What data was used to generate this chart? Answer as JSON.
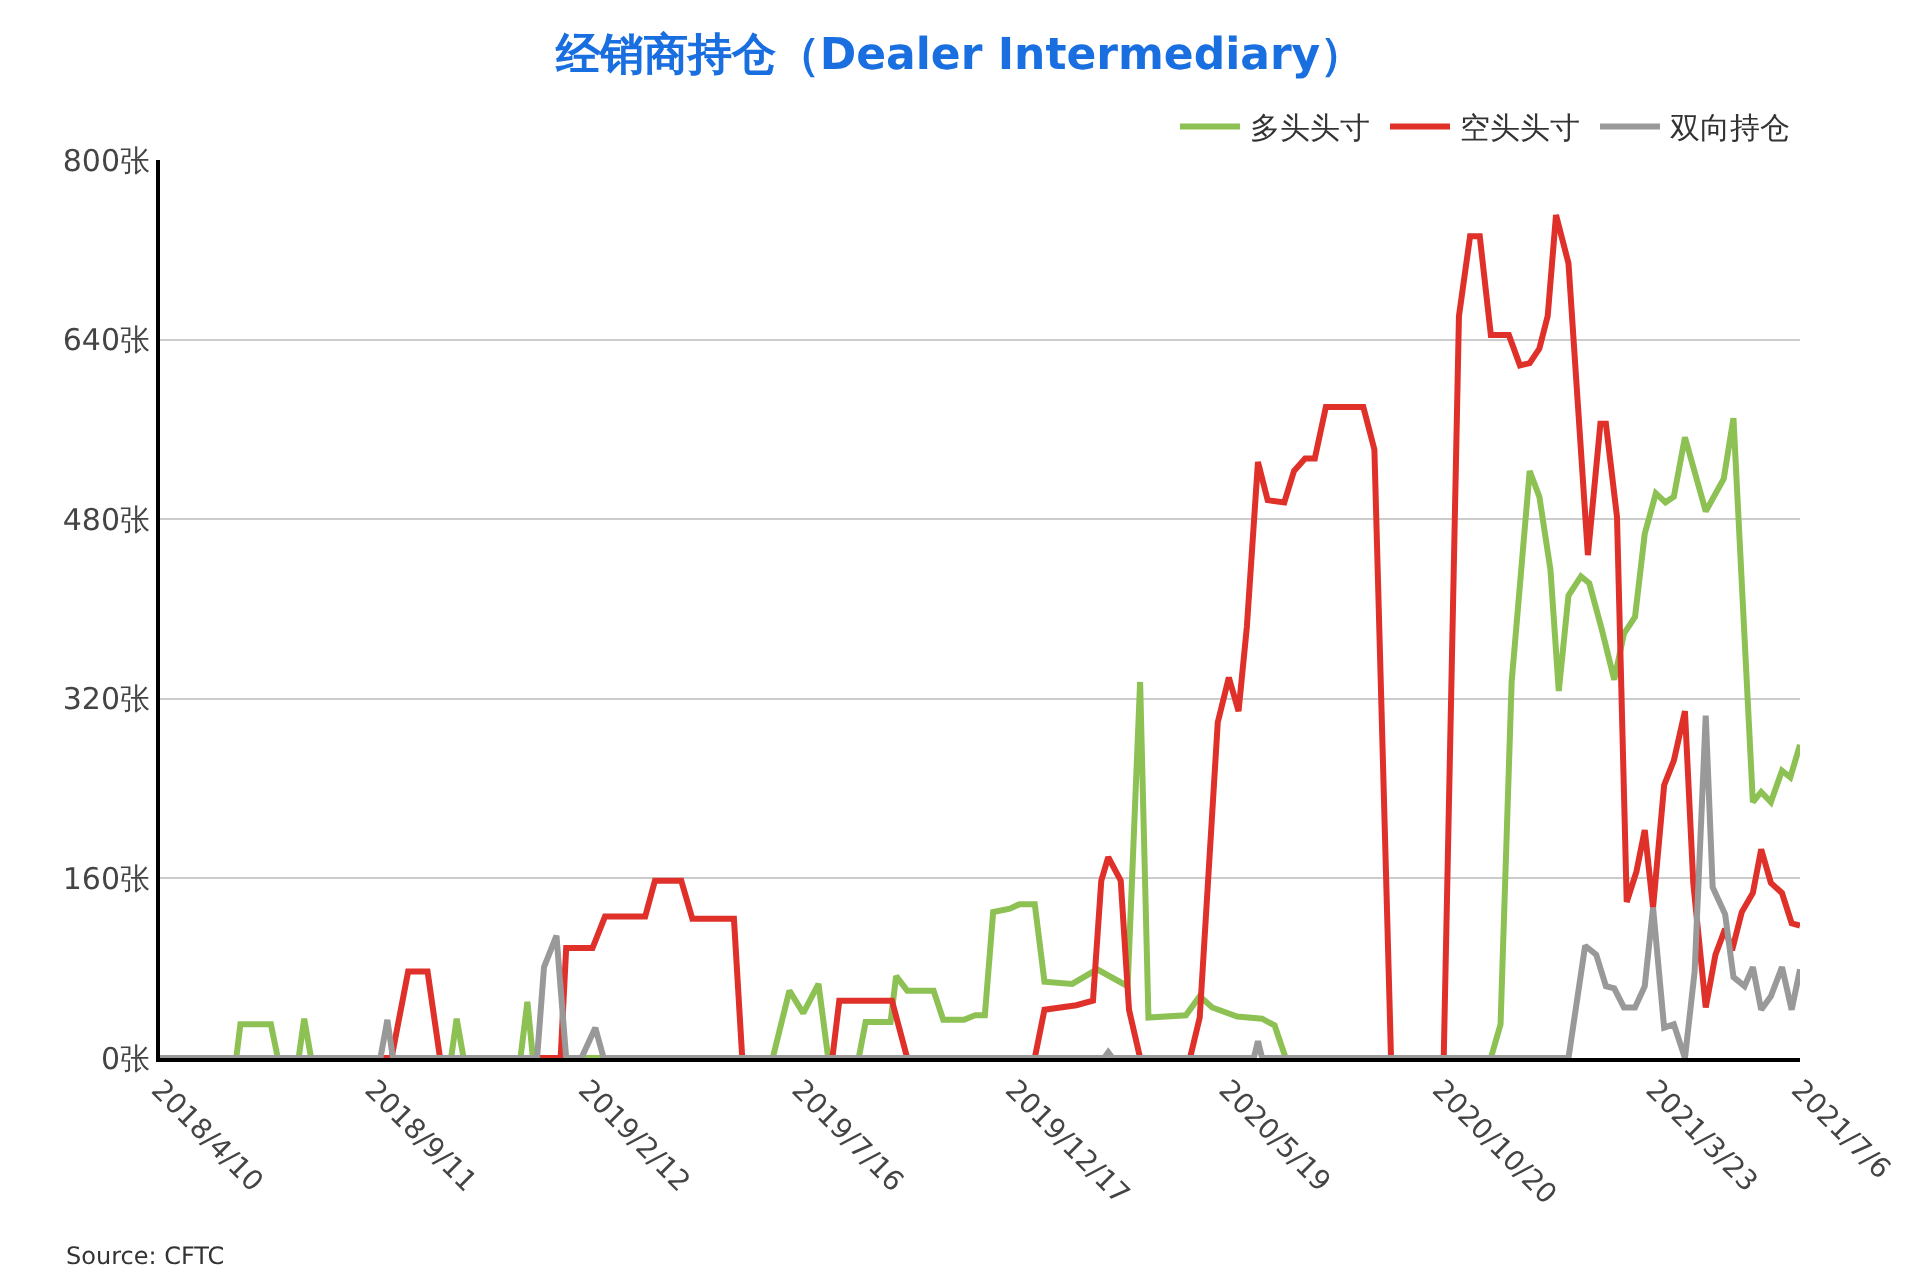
{
  "chart_data": {
    "type": "line",
    "title": "经销商持仓（Dealer Intermediary）",
    "annotations": [
      "Source: CFTC"
    ],
    "xlim": [
      "2018-04-10",
      "2021-07-06"
    ],
    "xticks": [
      {
        "value": "2018-04-10",
        "label": "2018/4/10"
      },
      {
        "value": "2018-09-11",
        "label": "2018/9/11"
      },
      {
        "value": "2019-02-12",
        "label": "2019/2/12"
      },
      {
        "value": "2019-07-16",
        "label": "2019/7/16"
      },
      {
        "value": "2019-12-17",
        "label": "2019/12/17"
      },
      {
        "value": "2020-05-19",
        "label": "2020/5/19"
      },
      {
        "value": "2020-10-20",
        "label": "2020/10/20"
      },
      {
        "value": "2021-03-23",
        "label": "2021/3/23"
      },
      {
        "value": "2021-07-06",
        "label": "2021/7/6"
      }
    ],
    "ylim": [
      0,
      800
    ],
    "yticks": [
      {
        "value": 0,
        "label": "0张"
      },
      {
        "value": 160,
        "label": "160张"
      },
      {
        "value": 320,
        "label": "320张"
      },
      {
        "value": 480,
        "label": "480张"
      },
      {
        "value": 640,
        "label": "640张"
      },
      {
        "value": 800,
        "label": "800张"
      }
    ],
    "grid": "y",
    "legend": "top right",
    "marker": "none",
    "line_style": "solid",
    "series": [
      {
        "name": "多头头寸",
        "color": "#8dc153",
        "x": [
          "2018-04-10",
          "2018-06-04",
          "2018-06-07",
          "2018-06-29",
          "2018-07-04",
          "2018-07-19",
          "2018-07-23",
          "2018-07-28",
          "2018-11-06",
          "2018-11-10",
          "2018-11-15",
          "2018-12-26",
          "2018-12-31",
          "2019-01-04",
          "2019-06-26",
          "2019-07-08",
          "2019-07-18",
          "2019-07-29",
          "2019-08-05",
          "2019-08-27",
          "2019-09-01",
          "2019-09-19",
          "2019-09-23",
          "2019-10-01",
          "2019-10-20",
          "2019-10-27",
          "2019-11-11",
          "2019-11-19",
          "2019-11-26",
          "2019-12-02",
          "2019-12-14",
          "2019-12-21",
          "2020-01-01",
          "2020-01-08",
          "2020-01-28",
          "2020-02-15",
          "2020-03-08",
          "2020-03-17",
          "2020-03-23",
          "2020-04-19",
          "2020-04-29",
          "2020-05-08",
          "2020-05-26",
          "2020-06-13",
          "2020-06-22",
          "2020-06-30",
          "2020-11-25",
          "2020-12-02",
          "2020-12-10",
          "2020-12-23",
          "2020-12-30",
          "2021-01-07",
          "2021-01-13",
          "2021-01-20",
          "2021-01-29",
          "2021-02-04",
          "2021-02-13",
          "2021-02-22",
          "2021-03-01",
          "2021-03-09",
          "2021-03-16",
          "2021-03-24",
          "2021-03-31",
          "2021-04-06",
          "2021-04-14",
          "2021-04-29",
          "2021-05-12",
          "2021-05-19",
          "2021-06-02",
          "2021-06-08",
          "2021-06-15",
          "2021-06-23",
          "2021-06-29",
          "2021-07-06"
        ],
        "values": [
          0,
          0,
          30,
          30,
          0,
          0,
          35,
          0,
          0,
          35,
          0,
          0,
          50,
          0,
          0,
          60,
          40,
          66,
          0,
          0,
          32,
          32,
          73,
          60,
          60,
          34,
          34,
          38,
          38,
          130,
          133,
          137,
          137,
          68,
          66,
          79,
          64,
          335,
          36,
          38,
          55,
          45,
          37,
          35,
          29,
          0,
          0,
          30,
          335,
          523,
          500,
          435,
          327,
          412,
          429,
          423,
          382,
          337,
          378,
          393,
          467,
          503,
          495,
          500,
          553,
          487,
          516,
          570,
          228,
          237,
          228,
          256,
          250,
          279
        ]
      },
      {
        "name": "空头头寸",
        "color": "#e0302a",
        "x": [
          "2018-04-10",
          "2018-09-24",
          "2018-10-06",
          "2018-10-20",
          "2018-10-29",
          "2019-01-24",
          "2019-01-28",
          "2019-02-16",
          "2019-02-25",
          "2019-03-26",
          "2019-04-02",
          "2019-04-21",
          "2019-04-29",
          "2019-05-29",
          "2019-06-04",
          "2019-08-08",
          "2019-08-13",
          "2019-09-20",
          "2019-10-01",
          "2020-01-01",
          "2020-01-08",
          "2020-01-31",
          "2020-02-12",
          "2020-02-18",
          "2020-02-23",
          "2020-03-03",
          "2020-03-09",
          "2020-03-17",
          "2020-04-22",
          "2020-04-29",
          "2020-05-12",
          "2020-05-20",
          "2020-05-27",
          "2020-06-02",
          "2020-06-10",
          "2020-06-17",
          "2020-06-29",
          "2020-07-06",
          "2020-07-14",
          "2020-07-21",
          "2020-07-29",
          "2020-08-25",
          "2020-09-02",
          "2020-09-14",
          "2020-10-22",
          "2020-11-02",
          "2020-11-10",
          "2020-11-17",
          "2020-11-25",
          "2020-12-08",
          "2020-12-16",
          "2020-12-23",
          "2020-12-30",
          "2021-01-05",
          "2021-01-11",
          "2021-01-20",
          "2021-02-03",
          "2021-02-12",
          "2021-02-16",
          "2021-02-24",
          "2021-03-03",
          "2021-03-10",
          "2021-03-16",
          "2021-03-22",
          "2021-03-30",
          "2021-04-06",
          "2021-04-14",
          "2021-04-20",
          "2021-04-29",
          "2021-05-06",
          "2021-05-13",
          "2021-05-18",
          "2021-05-25",
          "2021-06-02",
          "2021-06-08",
          "2021-06-15",
          "2021-06-23",
          "2021-06-30",
          "2021-07-06"
        ],
        "values": [
          0,
          0,
          77,
          77,
          0,
          0,
          98,
          98,
          126,
          126,
          158,
          158,
          124,
          124,
          0,
          0,
          51,
          51,
          0,
          0,
          43,
          47,
          51,
          158,
          179,
          158,
          43,
          0,
          0,
          36,
          299,
          339,
          309,
          384,
          531,
          497,
          495,
          523,
          534,
          534,
          580,
          580,
          542,
          0,
          0,
          661,
          732,
          732,
          644,
          644,
          617,
          619,
          632,
          661,
          751,
          708,
          448,
          565,
          565,
          482,
          139,
          166,
          203,
          134,
          243,
          265,
          309,
          156,
          45,
          92,
          115,
          96,
          130,
          147,
          186,
          156,
          147,
          120,
          118
        ]
      },
      {
        "name": "双向持仓",
        "color": "#999999",
        "x": [
          "2018-04-10",
          "2018-09-16",
          "2018-09-21",
          "2018-09-25",
          "2019-01-07",
          "2019-01-12",
          "2019-01-21",
          "2019-01-28",
          "2019-02-08",
          "2019-02-18",
          "2019-02-24",
          "2020-02-20",
          "2020-02-23",
          "2020-02-26",
          "2020-06-07",
          "2020-06-10",
          "2020-06-13",
          "2021-01-20",
          "2021-02-01",
          "2021-02-09",
          "2021-02-16",
          "2021-02-22",
          "2021-03-01",
          "2021-03-09",
          "2021-03-16",
          "2021-03-22",
          "2021-03-30",
          "2021-04-06",
          "2021-04-14",
          "2021-04-21",
          "2021-04-29",
          "2021-05-04",
          "2021-05-13",
          "2021-05-19",
          "2021-05-27",
          "2021-06-02",
          "2021-06-08",
          "2021-06-15",
          "2021-06-23",
          "2021-06-30",
          "2021-07-06"
        ],
        "values": [
          0,
          0,
          34,
          0,
          0,
          81,
          109,
          0,
          0,
          27,
          0,
          0,
          5,
          0,
          0,
          15,
          0,
          0,
          100,
          92,
          64,
          62,
          45,
          45,
          64,
          134,
          27,
          30,
          0,
          77,
          305,
          152,
          128,
          72,
          64,
          81,
          43,
          55,
          81,
          43,
          79
        ]
      }
    ]
  }
}
